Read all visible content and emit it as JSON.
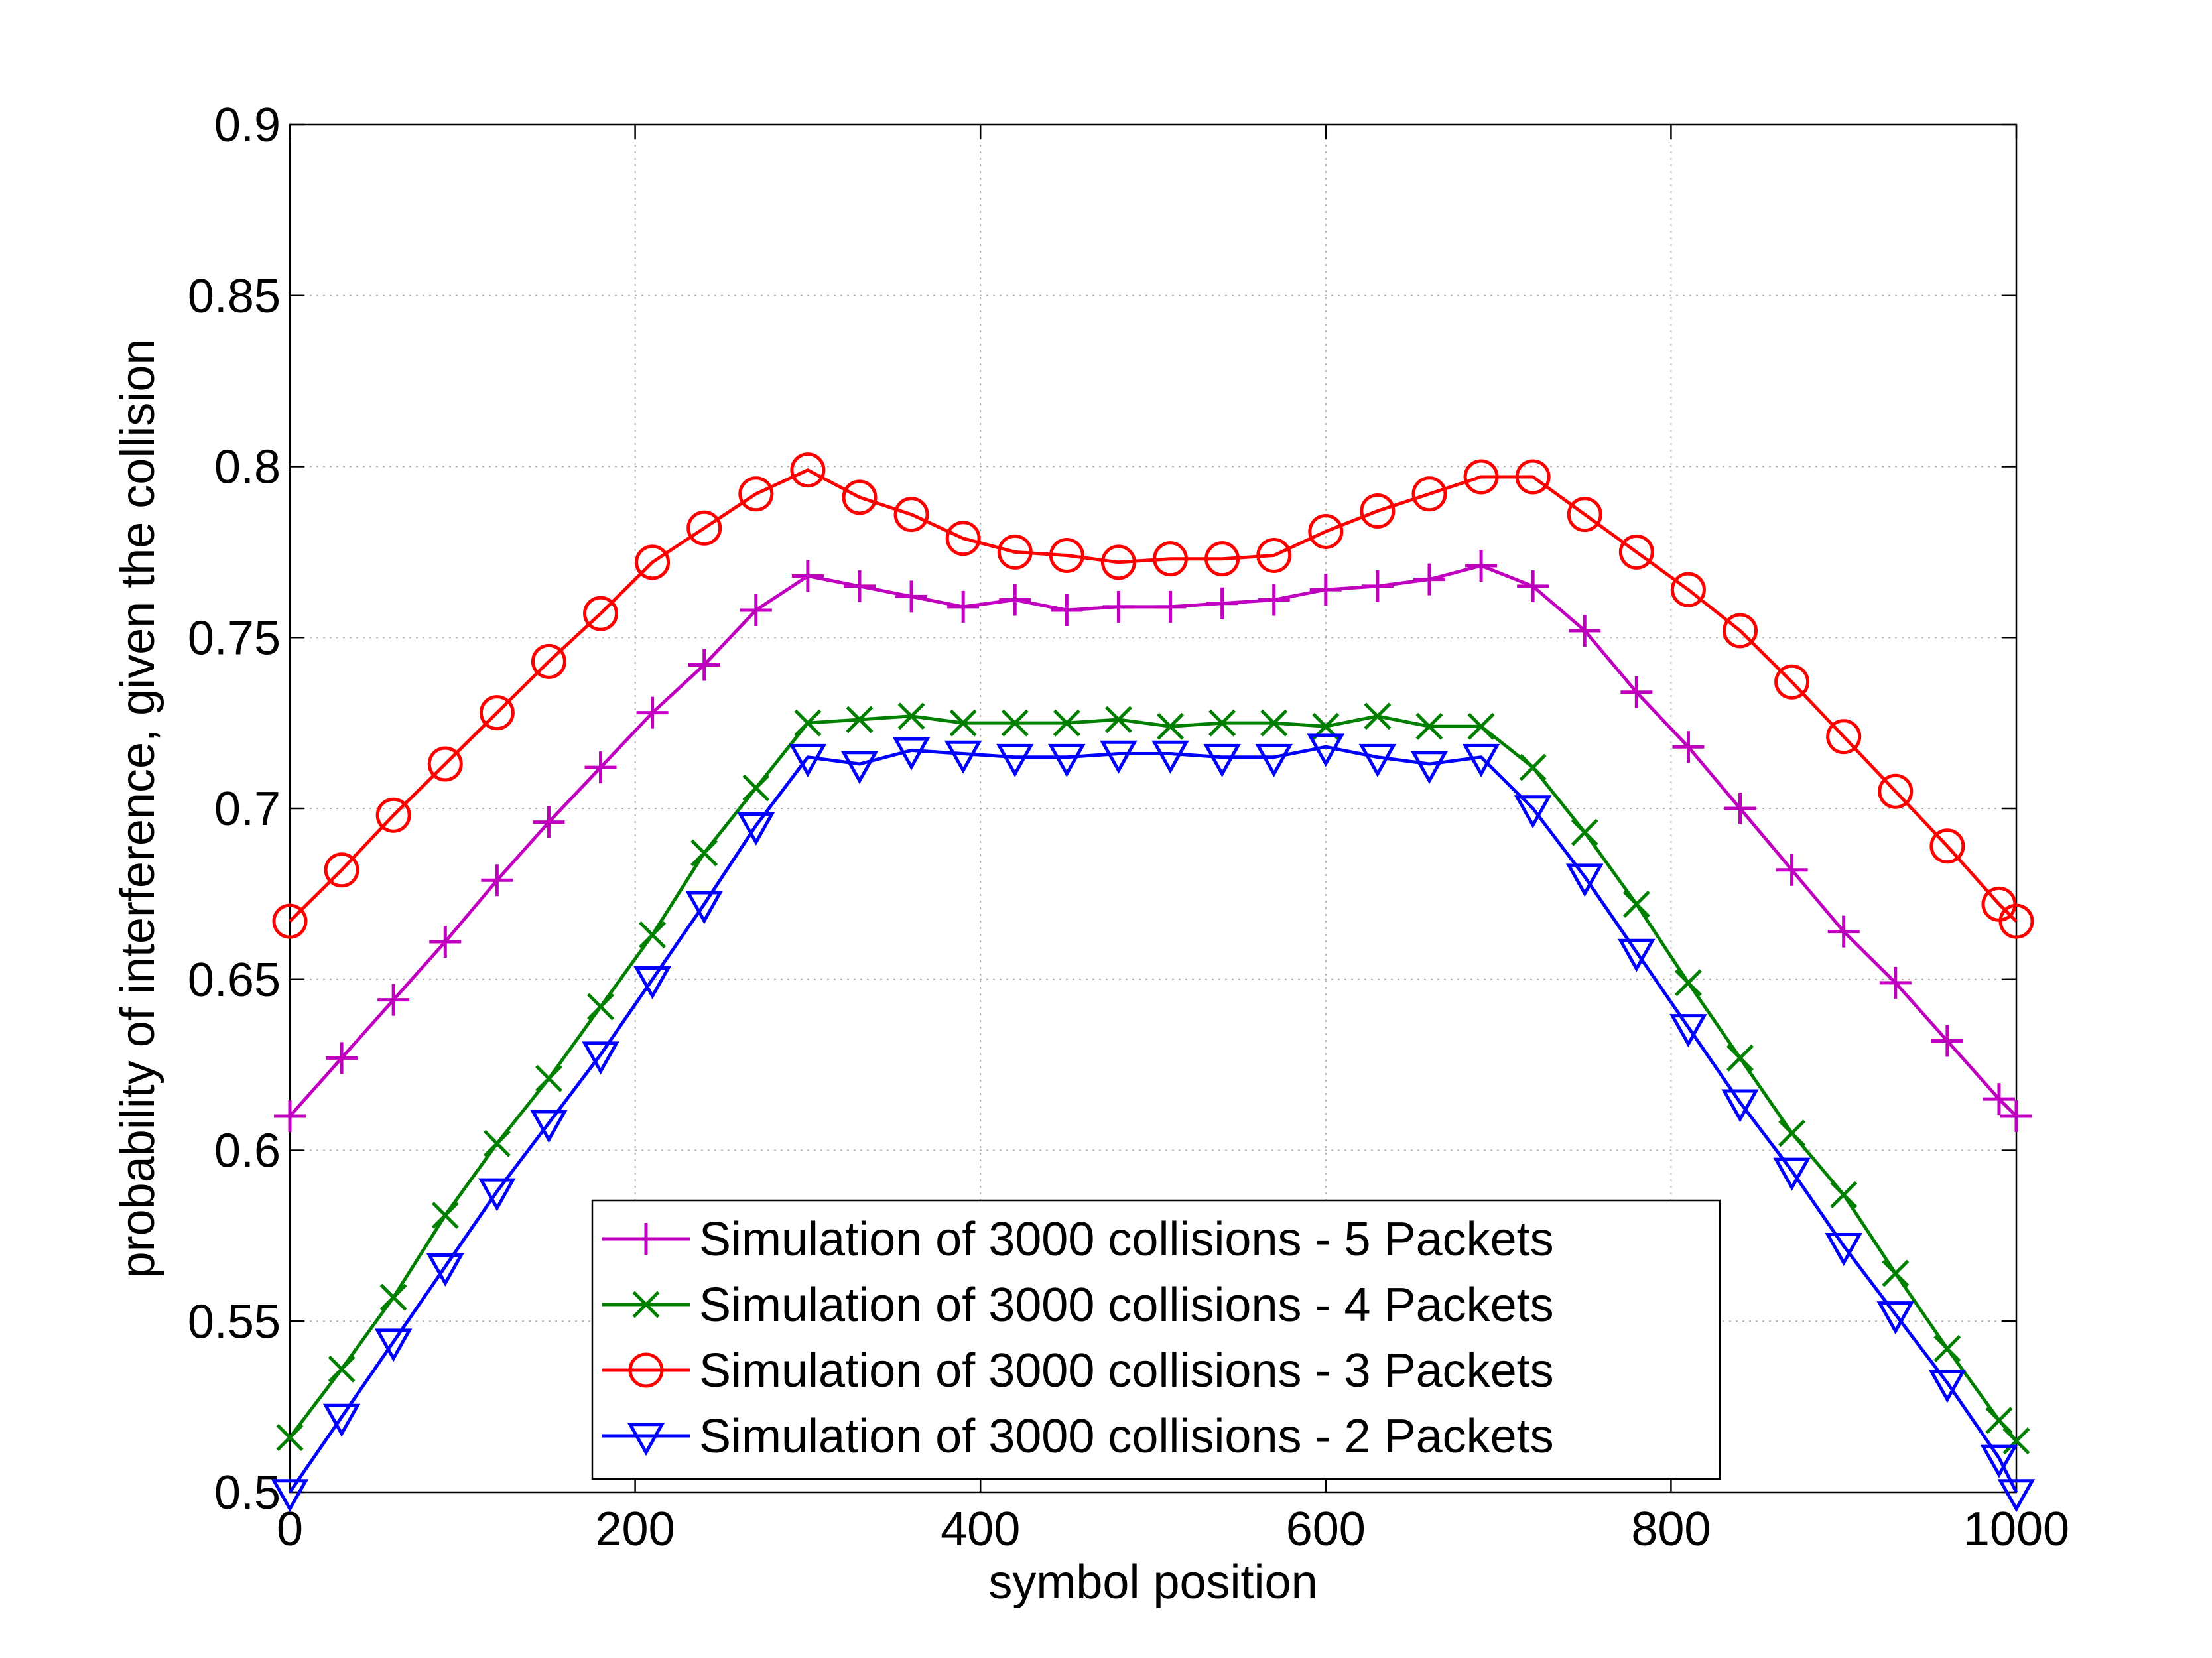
{
  "chart_data": {
    "type": "line",
    "title": "",
    "xlabel": "symbol position",
    "ylabel": "probability of interference, given the collision",
    "xlim": [
      0,
      1000
    ],
    "ylim": [
      0.5,
      0.9
    ],
    "xticks": [
      0,
      200,
      400,
      600,
      800,
      1000
    ],
    "xtick_labels": [
      "0",
      "200",
      "400",
      "600",
      "800",
      "1000"
    ],
    "yticks": [
      0.5,
      0.55,
      0.6,
      0.65,
      0.7,
      0.75,
      0.8,
      0.85,
      0.9
    ],
    "ytick_labels": [
      "0.5",
      "0.55",
      "0.6",
      "0.65",
      "0.7",
      "0.75",
      "0.8",
      "0.85",
      "0.9"
    ],
    "grid": true,
    "legend_position": "bottom-center",
    "x": [
      0,
      30,
      60,
      90,
      120,
      150,
      180,
      210,
      240,
      270,
      300,
      330,
      360,
      390,
      420,
      450,
      480,
      510,
      540,
      570,
      600,
      630,
      660,
      690,
      720,
      750,
      780,
      810,
      840,
      870,
      900,
      930,
      960,
      990,
      1000
    ],
    "series": [
      {
        "name": "Simulation of 3000 collisions - 5 Packets",
        "color": "#bf00bf",
        "marker": "plus",
        "values": [
          0.61,
          0.627,
          0.644,
          0.661,
          0.679,
          0.696,
          0.712,
          0.728,
          0.742,
          0.758,
          0.768,
          0.765,
          0.762,
          0.759,
          0.761,
          0.758,
          0.759,
          0.759,
          0.76,
          0.761,
          0.764,
          0.765,
          0.767,
          0.771,
          0.765,
          0.752,
          0.734,
          0.718,
          0.7,
          0.682,
          0.664,
          0.649,
          0.632,
          0.615,
          0.61
        ]
      },
      {
        "name": "Simulation of 3000 collisions - 4 Packets",
        "color": "#007f00",
        "marker": "x",
        "values": [
          0.516,
          0.536,
          0.557,
          0.581,
          0.602,
          0.621,
          0.642,
          0.663,
          0.687,
          0.706,
          0.725,
          0.726,
          0.727,
          0.725,
          0.725,
          0.725,
          0.726,
          0.724,
          0.725,
          0.725,
          0.724,
          0.727,
          0.724,
          0.724,
          0.712,
          0.693,
          0.672,
          0.649,
          0.627,
          0.605,
          0.587,
          0.564,
          0.542,
          0.521,
          0.515
        ]
      },
      {
        "name": "Simulation of 3000 collisions - 3 Packets",
        "color": "#ff0000",
        "marker": "circle",
        "values": [
          0.667,
          0.682,
          0.698,
          0.713,
          0.728,
          0.743,
          0.757,
          0.772,
          0.782,
          0.792,
          0.799,
          0.791,
          0.786,
          0.779,
          0.775,
          0.774,
          0.772,
          0.773,
          0.773,
          0.774,
          0.781,
          0.787,
          0.792,
          0.797,
          0.797,
          0.786,
          0.775,
          0.764,
          0.752,
          0.737,
          0.721,
          0.705,
          0.689,
          0.672,
          0.667
        ]
      },
      {
        "name": "Simulation of 3000 collisions - 2 Packets",
        "color": "#0000ff",
        "marker": "triangle-down",
        "values": [
          0.5,
          0.522,
          0.544,
          0.566,
          0.588,
          0.608,
          0.628,
          0.65,
          0.672,
          0.695,
          0.715,
          0.713,
          0.717,
          0.716,
          0.715,
          0.715,
          0.716,
          0.716,
          0.715,
          0.715,
          0.718,
          0.715,
          0.713,
          0.715,
          0.7,
          0.68,
          0.658,
          0.636,
          0.614,
          0.594,
          0.572,
          0.552,
          0.532,
          0.51,
          0.5
        ]
      }
    ]
  },
  "colors": {
    "axis": "#000000",
    "grid": "#b4b4b4",
    "background": "#ffffff"
  }
}
